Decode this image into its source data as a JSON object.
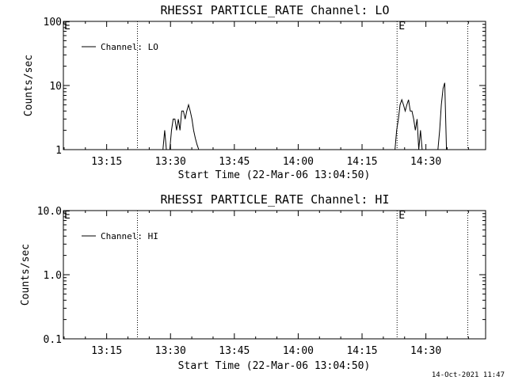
{
  "footer_timestamp": "14-Oct-2021 11:47",
  "chart_data": [
    {
      "type": "line",
      "title": "RHESSI PARTICLE_RATE Channel: LO",
      "xlabel": "Start Time (22-Mar-06 13:04:50)",
      "ylabel": "Counts/sec",
      "y_scale": "log",
      "ylim": [
        1,
        100
      ],
      "y_ticks": [
        1,
        10,
        100
      ],
      "y_tick_labels": [
        "1",
        "10",
        "100"
      ],
      "xlim_minutes": [
        0,
        60.67
      ],
      "x_ticks": [
        10.17,
        25.17,
        40.17,
        55.17,
        70.17,
        85.17
      ],
      "x_tick_labels": [
        "13:15",
        "13:30",
        "13:45",
        "14:00",
        "14:15",
        "14:30"
      ],
      "legend": {
        "position": "top-left",
        "entries": [
          "Channel: LO"
        ]
      },
      "markers": [
        {
          "x": 17.4,
          "label": ""
        },
        {
          "x": 78.4,
          "label": "E"
        },
        {
          "x": 95.0,
          "label": ""
        }
      ],
      "edge_label": "E",
      "series": [
        {
          "name": "Channel: LO",
          "x": [
            23.4,
            23.8,
            24.2,
            24.6,
            25.0,
            25.4,
            25.8,
            26.2,
            26.6,
            27.0,
            27.4,
            27.8,
            28.2,
            28.6,
            29.0,
            29.4,
            29.8,
            30.2,
            30.6,
            31.0,
            31.4,
            31.8,
            77.9,
            78.3,
            78.7,
            79.1,
            79.5,
            79.9,
            80.3,
            80.7,
            81.1,
            81.5,
            81.9,
            82.3,
            82.7,
            83.1,
            83.5,
            83.9,
            84.3,
            88.0,
            88.4,
            88.8,
            89.2,
            89.6,
            90.0
          ],
          "y": [
            1,
            2,
            1,
            1,
            1,
            2,
            3,
            3,
            2,
            3,
            2,
            4,
            4,
            3,
            4,
            5,
            4,
            3,
            2,
            1.5,
            1.2,
            1,
            1,
            2,
            3,
            5,
            6,
            5,
            4,
            5,
            6,
            4,
            4,
            3,
            2,
            3,
            1,
            2,
            1,
            1,
            2,
            5,
            9,
            11,
            1
          ]
        }
      ]
    },
    {
      "type": "line",
      "title": "RHESSI PARTICLE_RATE Channel: HI",
      "xlabel": "Start Time (22-Mar-06 13:04:50)",
      "ylabel": "Counts/sec",
      "y_scale": "log",
      "ylim": [
        0.1,
        10
      ],
      "y_ticks": [
        0.1,
        1.0,
        10.0
      ],
      "y_tick_labels": [
        "0.1",
        "1.0",
        "10.0"
      ],
      "x_ticks": [
        10.17,
        25.17,
        40.17,
        55.17,
        70.17,
        85.17
      ],
      "x_tick_labels": [
        "13:15",
        "13:30",
        "13:45",
        "14:00",
        "14:15",
        "14:30"
      ],
      "legend": {
        "position": "top-left",
        "entries": [
          "Channel: HI"
        ]
      },
      "markers": [
        {
          "x": 17.4,
          "label": ""
        },
        {
          "x": 78.4,
          "label": "E"
        },
        {
          "x": 95.0,
          "label": ""
        }
      ],
      "edge_label": "E",
      "series": [
        {
          "name": "Channel: HI",
          "x": [],
          "y": []
        }
      ]
    }
  ]
}
